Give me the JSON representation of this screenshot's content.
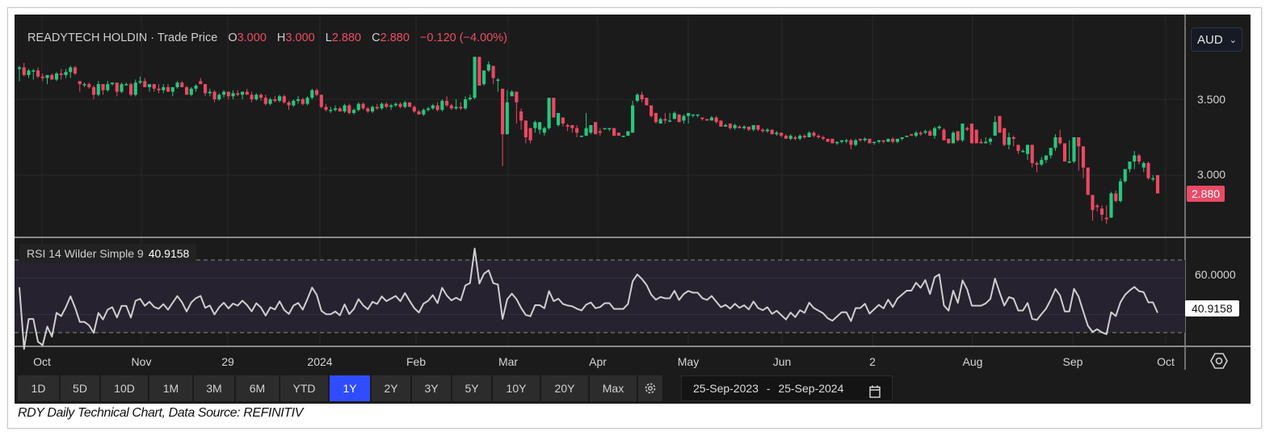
{
  "legend": {
    "instrument": "READYTECH HOLDIN · Trade Price",
    "open_label": "O",
    "open": "3.000",
    "high_label": "H",
    "high": "3.000",
    "low_label": "L",
    "low": "2.880",
    "close_label": "C",
    "close": "2.880",
    "change": "−0.120 (−4.00%)"
  },
  "currency": {
    "value": "AUD"
  },
  "price_axis": {
    "ticks": [
      "3.500",
      "3.000"
    ],
    "last_price_tag": "2.880"
  },
  "rsi": {
    "label": "RSI 14 Wilder Simple 9",
    "value": "40.9158",
    "axis_tick": "60.0000",
    "last_tag": "40.9158"
  },
  "x_axis": {
    "labels": [
      "Oct",
      "Nov",
      "29",
      "2024",
      "Feb",
      "Mar",
      "Apr",
      "May",
      "Jun",
      "2",
      "Aug",
      "Sep",
      "Oct"
    ]
  },
  "range_buttons": [
    {
      "label": "1D"
    },
    {
      "label": "5D"
    },
    {
      "label": "10D"
    },
    {
      "label": "1M"
    },
    {
      "label": "3M"
    },
    {
      "label": "6M"
    },
    {
      "label": "YTD"
    },
    {
      "label": "1Y",
      "active": true
    },
    {
      "label": "2Y"
    },
    {
      "label": "3Y"
    },
    {
      "label": "5Y"
    },
    {
      "label": "10Y"
    },
    {
      "label": "20Y"
    },
    {
      "label": "Max"
    }
  ],
  "date_range": {
    "from": "25-Sep-2023",
    "separator": "-",
    "to": "25-Sep-2024"
  },
  "caption": "RDY Daily Technical Chart, Data Source: REFINITIV",
  "colors": {
    "up": "#26c77f",
    "down": "#ec4862",
    "background": "#1b1b1b",
    "rsi_line": "#cfcfcf",
    "rsi_band": "#262230",
    "active_button": "#2f4dff"
  },
  "chart_data": {
    "type": "candlestick",
    "interval": "daily",
    "ylim": [
      2.6,
      4.0
    ],
    "y_ticks": [
      3.5,
      3.0
    ],
    "grid": true,
    "x_tick_labels": [
      "Oct",
      "Nov",
      "29",
      "2024",
      "Feb",
      "Mar",
      "Apr",
      "May",
      "Jun",
      "2",
      "Aug",
      "Sep",
      "Oct"
    ],
    "ohlc": [
      [
        3.7,
        3.72,
        3.62,
        3.71
      ],
      [
        3.71,
        3.74,
        3.65,
        3.66
      ],
      [
        3.66,
        3.7,
        3.64,
        3.69
      ],
      [
        3.69,
        3.7,
        3.63,
        3.69
      ],
      [
        3.69,
        3.71,
        3.64,
        3.65
      ],
      [
        3.65,
        3.67,
        3.62,
        3.64
      ],
      [
        3.64,
        3.66,
        3.6,
        3.66
      ],
      [
        3.66,
        3.67,
        3.63,
        3.63
      ],
      [
        3.63,
        3.68,
        3.62,
        3.67
      ],
      [
        3.67,
        3.7,
        3.63,
        3.66
      ],
      [
        3.66,
        3.7,
        3.64,
        3.68
      ],
      [
        3.68,
        3.72,
        3.64,
        3.71
      ],
      [
        3.71,
        3.72,
        3.66,
        3.67
      ],
      [
        3.62,
        3.62,
        3.55,
        3.6
      ],
      [
        3.6,
        3.61,
        3.58,
        3.6
      ],
      [
        3.6,
        3.61,
        3.57,
        3.58
      ],
      [
        3.58,
        3.59,
        3.5,
        3.53
      ],
      [
        3.53,
        3.62,
        3.52,
        3.6
      ],
      [
        3.6,
        3.6,
        3.53,
        3.56
      ],
      [
        3.56,
        3.62,
        3.55,
        3.6
      ],
      [
        3.6,
        3.61,
        3.59,
        3.61
      ],
      [
        3.61,
        3.61,
        3.52,
        3.55
      ],
      [
        3.55,
        3.61,
        3.54,
        3.6
      ],
      [
        3.6,
        3.61,
        3.59,
        3.6
      ],
      [
        3.6,
        3.61,
        3.52,
        3.53
      ],
      [
        3.53,
        3.63,
        3.52,
        3.61
      ],
      [
        3.61,
        3.65,
        3.6,
        3.62
      ],
      [
        3.62,
        3.64,
        3.58,
        3.58
      ],
      [
        3.58,
        3.59,
        3.55,
        3.6
      ],
      [
        3.6,
        3.6,
        3.55,
        3.57
      ],
      [
        3.57,
        3.6,
        3.54,
        3.56
      ],
      [
        3.56,
        3.6,
        3.54,
        3.58
      ],
      [
        3.58,
        3.6,
        3.55,
        3.55
      ],
      [
        3.55,
        3.58,
        3.52,
        3.58
      ],
      [
        3.58,
        3.62,
        3.57,
        3.61
      ],
      [
        3.61,
        3.62,
        3.58,
        3.58
      ],
      [
        3.58,
        3.59,
        3.53,
        3.53
      ],
      [
        3.53,
        3.58,
        3.52,
        3.57
      ],
      [
        3.57,
        3.6,
        3.55,
        3.59
      ],
      [
        3.62,
        3.64,
        3.6,
        3.6
      ],
      [
        3.6,
        3.6,
        3.52,
        3.54
      ],
      [
        3.54,
        3.57,
        3.52,
        3.55
      ],
      [
        3.55,
        3.56,
        3.48,
        3.5
      ],
      [
        3.5,
        3.54,
        3.49,
        3.53
      ],
      [
        3.53,
        3.56,
        3.51,
        3.55
      ],
      [
        3.55,
        3.55,
        3.5,
        3.52
      ],
      [
        3.52,
        3.56,
        3.5,
        3.54
      ],
      [
        3.54,
        3.56,
        3.52,
        3.53
      ],
      [
        3.53,
        3.55,
        3.5,
        3.55
      ],
      [
        3.55,
        3.57,
        3.53,
        3.53
      ],
      [
        3.53,
        3.55,
        3.48,
        3.5
      ],
      [
        3.5,
        3.54,
        3.49,
        3.53
      ],
      [
        3.53,
        3.54,
        3.49,
        3.51
      ],
      [
        3.51,
        3.53,
        3.46,
        3.47
      ],
      [
        3.47,
        3.51,
        3.46,
        3.5
      ],
      [
        3.5,
        3.52,
        3.48,
        3.49
      ],
      [
        3.49,
        3.53,
        3.48,
        3.52
      ],
      [
        3.52,
        3.53,
        3.47,
        3.48
      ],
      [
        3.48,
        3.49,
        3.43,
        3.46
      ],
      [
        3.46,
        3.5,
        3.45,
        3.49
      ],
      [
        3.49,
        3.52,
        3.47,
        3.5
      ],
      [
        3.5,
        3.51,
        3.46,
        3.47
      ],
      [
        3.47,
        3.52,
        3.46,
        3.51
      ],
      [
        3.51,
        3.57,
        3.5,
        3.56
      ],
      [
        3.56,
        3.57,
        3.52,
        3.53
      ],
      [
        3.53,
        3.53,
        3.44,
        3.45
      ],
      [
        3.45,
        3.47,
        3.42,
        3.43
      ],
      [
        3.43,
        3.45,
        3.41,
        3.43
      ],
      [
        3.43,
        3.46,
        3.42,
        3.44
      ],
      [
        3.44,
        3.45,
        3.42,
        3.42
      ],
      [
        3.42,
        3.47,
        3.41,
        3.46
      ],
      [
        3.46,
        3.47,
        3.4,
        3.41
      ],
      [
        3.41,
        3.44,
        3.4,
        3.43
      ],
      [
        3.43,
        3.48,
        3.42,
        3.47
      ],
      [
        3.47,
        3.48,
        3.43,
        3.44
      ],
      [
        3.44,
        3.45,
        3.41,
        3.42
      ],
      [
        3.42,
        3.46,
        3.41,
        3.45
      ],
      [
        3.45,
        3.47,
        3.43,
        3.44
      ],
      [
        3.44,
        3.48,
        3.43,
        3.47
      ],
      [
        3.47,
        3.48,
        3.44,
        3.45
      ],
      [
        3.45,
        3.47,
        3.43,
        3.46
      ],
      [
        3.46,
        3.48,
        3.45,
        3.47
      ],
      [
        3.47,
        3.48,
        3.44,
        3.45
      ],
      [
        3.45,
        3.49,
        3.44,
        3.48
      ],
      [
        3.48,
        3.48,
        3.45,
        3.45
      ],
      [
        3.45,
        3.46,
        3.41,
        3.42
      ],
      [
        3.42,
        3.43,
        3.4,
        3.4
      ],
      [
        3.4,
        3.44,
        3.39,
        3.43
      ],
      [
        3.43,
        3.45,
        3.42,
        3.44
      ],
      [
        3.44,
        3.47,
        3.43,
        3.46
      ],
      [
        3.46,
        3.48,
        3.42,
        3.43
      ],
      [
        3.43,
        3.5,
        3.42,
        3.49
      ],
      [
        3.49,
        3.52,
        3.45,
        3.46
      ],
      [
        3.46,
        3.47,
        3.43,
        3.44
      ],
      [
        3.44,
        3.5,
        3.43,
        3.45
      ],
      [
        3.45,
        3.48,
        3.43,
        3.44
      ],
      [
        3.44,
        3.52,
        3.43,
        3.5
      ],
      [
        3.5,
        3.53,
        3.49,
        3.51
      ],
      [
        3.51,
        3.78,
        3.5,
        3.78
      ],
      [
        3.78,
        3.78,
        3.59,
        3.59
      ],
      [
        3.6,
        3.69,
        3.59,
        3.69
      ],
      [
        3.69,
        3.75,
        3.68,
        3.73
      ],
      [
        3.72,
        3.72,
        3.6,
        3.64
      ],
      [
        3.63,
        3.64,
        3.55,
        3.63
      ],
      [
        3.57,
        3.57,
        3.06,
        3.27
      ],
      [
        3.27,
        3.56,
        3.27,
        3.48
      ],
      [
        3.52,
        3.56,
        3.52,
        3.55
      ],
      [
        3.55,
        3.55,
        3.34,
        3.48
      ],
      [
        3.42,
        3.44,
        3.3,
        3.36
      ],
      [
        3.36,
        3.36,
        3.21,
        3.25
      ],
      [
        3.31,
        3.31,
        3.21,
        3.23
      ],
      [
        3.31,
        3.36,
        3.28,
        3.35
      ],
      [
        3.3,
        3.35,
        3.27,
        3.35
      ],
      [
        3.28,
        3.32,
        3.26,
        3.31
      ],
      [
        3.31,
        3.51,
        3.3,
        3.51
      ],
      [
        3.51,
        3.51,
        3.38,
        3.38
      ],
      [
        3.33,
        3.41,
        3.32,
        3.41
      ],
      [
        3.38,
        3.38,
        3.32,
        3.34
      ],
      [
        3.33,
        3.34,
        3.29,
        3.32
      ],
      [
        3.33,
        3.33,
        3.28,
        3.31
      ],
      [
        3.31,
        3.33,
        3.25,
        3.28
      ],
      [
        3.26,
        3.26,
        3.25,
        3.26
      ],
      [
        3.26,
        3.41,
        3.26,
        3.31
      ],
      [
        3.28,
        3.33,
        3.27,
        3.33
      ],
      [
        3.35,
        3.35,
        3.27,
        3.27
      ],
      [
        3.29,
        3.31,
        3.26,
        3.28
      ],
      [
        3.31,
        3.31,
        3.3,
        3.31
      ],
      [
        3.31,
        3.31,
        3.29,
        3.31
      ],
      [
        3.31,
        3.31,
        3.26,
        3.26
      ],
      [
        3.28,
        3.28,
        3.26,
        3.26
      ],
      [
        3.26,
        3.26,
        3.25,
        3.26
      ],
      [
        3.26,
        3.29,
        3.26,
        3.29
      ],
      [
        3.28,
        3.49,
        3.28,
        3.46
      ],
      [
        3.49,
        3.54,
        3.48,
        3.53
      ],
      [
        3.53,
        3.55,
        3.48,
        3.5
      ],
      [
        3.51,
        3.51,
        3.46,
        3.46
      ],
      [
        3.46,
        3.46,
        3.38,
        3.39
      ],
      [
        3.41,
        3.41,
        3.34,
        3.35
      ],
      [
        3.34,
        3.38,
        3.34,
        3.37
      ],
      [
        3.37,
        3.41,
        3.34,
        3.36
      ],
      [
        3.36,
        3.41,
        3.35,
        3.36
      ],
      [
        3.37,
        3.42,
        3.37,
        3.41
      ],
      [
        3.4,
        3.4,
        3.35,
        3.35
      ],
      [
        3.36,
        3.4,
        3.34,
        3.39
      ],
      [
        3.39,
        3.41,
        3.34,
        3.41
      ],
      [
        3.4,
        3.4,
        3.38,
        3.4
      ],
      [
        3.4,
        3.4,
        3.38,
        3.4
      ],
      [
        3.38,
        3.38,
        3.36,
        3.37
      ],
      [
        3.37,
        3.37,
        3.36,
        3.36
      ],
      [
        3.36,
        3.39,
        3.36,
        3.38
      ],
      [
        3.38,
        3.39,
        3.34,
        3.35
      ],
      [
        3.36,
        3.36,
        3.32,
        3.32
      ],
      [
        3.32,
        3.34,
        3.32,
        3.33
      ],
      [
        3.34,
        3.34,
        3.3,
        3.31
      ],
      [
        3.31,
        3.34,
        3.3,
        3.33
      ],
      [
        3.32,
        3.33,
        3.31,
        3.31
      ],
      [
        3.31,
        3.33,
        3.3,
        3.32
      ],
      [
        3.32,
        3.32,
        3.29,
        3.3
      ],
      [
        3.3,
        3.33,
        3.29,
        3.33
      ],
      [
        3.33,
        3.33,
        3.29,
        3.3
      ],
      [
        3.3,
        3.31,
        3.28,
        3.29
      ],
      [
        3.29,
        3.31,
        3.28,
        3.3
      ],
      [
        3.3,
        3.3,
        3.27,
        3.27
      ],
      [
        3.27,
        3.29,
        3.26,
        3.28
      ],
      [
        3.28,
        3.28,
        3.25,
        3.26
      ],
      [
        3.26,
        3.27,
        3.24,
        3.24
      ],
      [
        3.24,
        3.27,
        3.23,
        3.26
      ],
      [
        3.25,
        3.26,
        3.23,
        3.24
      ],
      [
        3.24,
        3.27,
        3.23,
        3.26
      ],
      [
        3.26,
        3.27,
        3.24,
        3.25
      ],
      [
        3.25,
        3.29,
        3.25,
        3.28
      ],
      [
        3.28,
        3.29,
        3.25,
        3.26
      ],
      [
        3.26,
        3.27,
        3.24,
        3.25
      ],
      [
        3.25,
        3.26,
        3.23,
        3.24
      ],
      [
        3.24,
        3.24,
        3.22,
        3.22
      ],
      [
        3.24,
        3.24,
        3.21,
        3.21
      ],
      [
        3.21,
        3.22,
        3.2,
        3.22
      ],
      [
        3.22,
        3.23,
        3.21,
        3.23
      ],
      [
        3.23,
        3.24,
        3.21,
        3.23
      ],
      [
        3.23,
        3.24,
        3.17,
        3.2
      ],
      [
        3.2,
        3.24,
        3.19,
        3.23
      ],
      [
        3.24,
        3.24,
        3.22,
        3.23
      ],
      [
        3.23,
        3.25,
        3.22,
        3.24
      ],
      [
        3.24,
        3.24,
        3.21,
        3.21
      ],
      [
        3.22,
        3.22,
        3.2,
        3.22
      ],
      [
        3.22,
        3.23,
        3.21,
        3.23
      ],
      [
        3.23,
        3.23,
        3.21,
        3.22
      ],
      [
        3.22,
        3.24,
        3.22,
        3.24
      ],
      [
        3.24,
        3.25,
        3.21,
        3.22
      ],
      [
        3.22,
        3.24,
        3.21,
        3.24
      ],
      [
        3.24,
        3.25,
        3.23,
        3.25
      ],
      [
        3.26,
        3.26,
        3.25,
        3.26
      ],
      [
        3.27,
        3.27,
        3.26,
        3.26
      ],
      [
        3.26,
        3.29,
        3.25,
        3.28
      ],
      [
        3.28,
        3.29,
        3.26,
        3.27
      ],
      [
        3.28,
        3.3,
        3.27,
        3.29
      ],
      [
        3.29,
        3.3,
        3.26,
        3.26
      ],
      [
        3.26,
        3.32,
        3.24,
        3.31
      ],
      [
        3.31,
        3.33,
        3.3,
        3.32
      ],
      [
        3.3,
        3.31,
        3.23,
        3.23
      ],
      [
        3.24,
        3.24,
        3.21,
        3.21
      ],
      [
        3.21,
        3.29,
        3.21,
        3.28
      ],
      [
        3.29,
        3.29,
        3.22,
        3.23
      ],
      [
        3.23,
        3.34,
        3.22,
        3.34
      ],
      [
        3.31,
        3.32,
        3.29,
        3.3
      ],
      [
        3.34,
        3.34,
        3.21,
        3.21
      ],
      [
        3.3,
        3.3,
        3.21,
        3.21
      ],
      [
        3.22,
        3.24,
        3.21,
        3.21
      ],
      [
        3.21,
        3.25,
        3.21,
        3.22
      ],
      [
        3.22,
        3.25,
        3.2,
        3.24
      ],
      [
        3.26,
        3.39,
        3.26,
        3.35
      ],
      [
        3.39,
        3.39,
        3.28,
        3.28
      ],
      [
        3.31,
        3.31,
        3.19,
        3.2
      ],
      [
        3.2,
        3.28,
        3.17,
        3.25
      ],
      [
        3.25,
        3.26,
        3.19,
        3.24
      ],
      [
        3.2,
        3.2,
        3.14,
        3.16
      ],
      [
        3.16,
        3.17,
        3.15,
        3.16
      ],
      [
        3.14,
        3.2,
        3.1,
        3.2
      ],
      [
        3.2,
        3.2,
        3.05,
        3.08
      ],
      [
        3.08,
        3.09,
        3.02,
        3.07
      ],
      [
        3.07,
        3.12,
        3.06,
        3.1
      ],
      [
        3.1,
        3.13,
        3.08,
        3.13
      ],
      [
        3.13,
        3.18,
        3.11,
        3.18
      ],
      [
        3.18,
        3.27,
        3.16,
        3.25
      ],
      [
        3.25,
        3.3,
        3.2,
        3.21
      ],
      [
        3.21,
        3.21,
        3.09,
        3.09
      ],
      [
        3.09,
        3.23,
        3.08,
        3.09
      ],
      [
        3.09,
        3.25,
        3.08,
        3.25
      ],
      [
        3.25,
        3.25,
        3.03,
        3.19
      ],
      [
        3.19,
        3.19,
        2.98,
        3.05
      ],
      [
        3.05,
        3.05,
        2.87,
        2.87
      ],
      [
        2.87,
        2.87,
        2.7,
        2.77
      ],
      [
        2.8,
        2.81,
        2.76,
        2.79
      ],
      [
        2.78,
        2.8,
        2.7,
        2.74
      ],
      [
        2.72,
        2.8,
        2.68,
        2.71
      ],
      [
        2.72,
        2.89,
        2.72,
        2.88
      ],
      [
        2.88,
        2.9,
        2.82,
        2.83
      ],
      [
        2.83,
        2.98,
        2.82,
        2.96
      ],
      [
        2.96,
        3.04,
        2.95,
        3.04
      ],
      [
        3.04,
        3.09,
        3.02,
        3.09
      ],
      [
        3.09,
        3.16,
        3.04,
        3.13
      ],
      [
        3.13,
        3.14,
        3.07,
        3.09
      ],
      [
        3.05,
        3.09,
        3.02,
        3.08
      ],
      [
        3.08,
        3.09,
        2.97,
        2.98
      ],
      [
        2.98,
        3.0,
        2.96,
        2.98
      ],
      [
        3.0,
        3.0,
        2.88,
        2.88
      ]
    ],
    "rsi": {
      "period": 14,
      "smoothing": "Wilder",
      "levels": [
        70,
        30
      ],
      "ylim": [
        21,
        80
      ],
      "last": 40.9158
    }
  }
}
